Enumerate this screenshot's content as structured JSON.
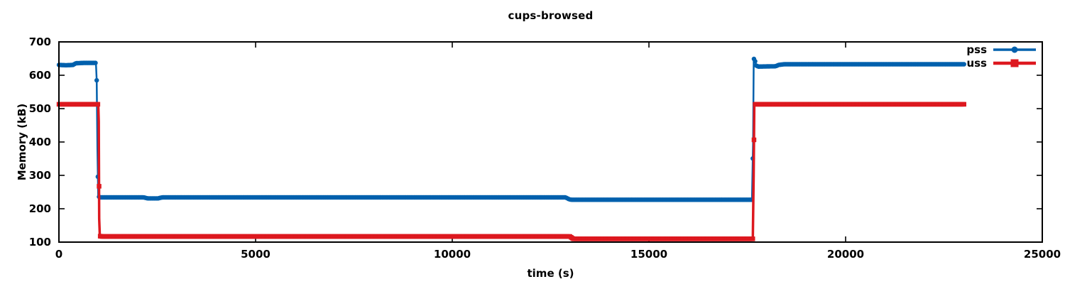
{
  "title": "cups-browsed",
  "colors": {
    "pss": "#0060ad",
    "uss": "#dd181f",
    "axis": "#000000",
    "background": "#ffffff"
  },
  "chart_data": {
    "type": "line",
    "title": "cups-browsed",
    "xlabel": "time (s)",
    "ylabel": "Memory (kB)",
    "xlim": [
      0,
      25000
    ],
    "ylim": [
      100,
      700
    ],
    "x_ticks": [
      0,
      5000,
      10000,
      15000,
      20000,
      25000
    ],
    "y_ticks": [
      100,
      200,
      300,
      400,
      500,
      600,
      700
    ],
    "grid": false,
    "legend_position": "top-right-inside",
    "sample_interval_s": 30,
    "series": [
      {
        "name": "pss",
        "color": "#0060ad",
        "marker": "circle",
        "line_width": 2.5,
        "marker_size": 3.2,
        "breakpoints": [
          [
            0,
            631
          ],
          [
            180,
            630
          ],
          [
            360,
            631
          ],
          [
            430,
            636
          ],
          [
            620,
            637
          ],
          [
            940,
            637
          ],
          [
            960,
            585
          ],
          [
            978,
            380
          ],
          [
            998,
            240
          ],
          [
            1030,
            234
          ],
          [
            2150,
            234
          ],
          [
            2260,
            231
          ],
          [
            2520,
            231
          ],
          [
            2620,
            234
          ],
          [
            12880,
            234
          ],
          [
            12980,
            228
          ],
          [
            13040,
            227
          ],
          [
            17620,
            227
          ],
          [
            17648,
            400
          ],
          [
            17665,
            650
          ],
          [
            17695,
            644
          ],
          [
            17730,
            629
          ],
          [
            17780,
            626
          ],
          [
            18220,
            627
          ],
          [
            18300,
            631
          ],
          [
            18430,
            633
          ],
          [
            23030,
            633
          ]
        ]
      },
      {
        "name": "uss",
        "color": "#dd181f",
        "marker": "square",
        "line_width": 3.5,
        "marker_size": 6.5,
        "breakpoints": [
          [
            0,
            513
          ],
          [
            1000,
            513
          ],
          [
            1012,
            462
          ],
          [
            1024,
            170
          ],
          [
            1040,
            118
          ],
          [
            1090,
            117
          ],
          [
            12990,
            117
          ],
          [
            13070,
            110
          ],
          [
            17640,
            110
          ],
          [
            17662,
            300
          ],
          [
            17678,
            513
          ],
          [
            23030,
            513
          ]
        ]
      }
    ]
  }
}
